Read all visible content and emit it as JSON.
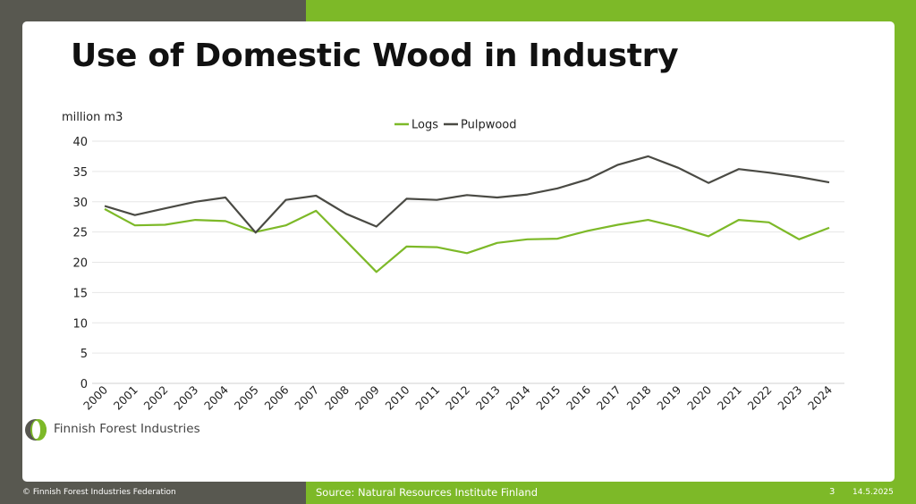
{
  "slide": {
    "title": "Use of Domestic Wood in Industry",
    "logo_text": "Finnish Forest Industries",
    "footer_copyright": "© Finnish Forest Industries Federation",
    "footer_source": "Source: Natural Resources Institute Finland",
    "page_number": "3",
    "date": "14.5.2025"
  },
  "colors": {
    "logs": "#7db928",
    "pulpwood": "#4a4a44",
    "grid": "#e6e6e6",
    "accent_green": "#7db928",
    "dark_panel": "#585850"
  },
  "chart_data": {
    "type": "line",
    "title": "",
    "ylabel": "million m3",
    "xlabel": "",
    "ylim": [
      0,
      40
    ],
    "yticks": [
      0,
      5,
      10,
      15,
      20,
      25,
      30,
      35,
      40
    ],
    "grid": true,
    "legend_position": "top-center",
    "categories": [
      "2000",
      "2001",
      "2002",
      "2003",
      "2004",
      "2005",
      "2006",
      "2007",
      "2008",
      "2009",
      "2010",
      "2011",
      "2012",
      "2013",
      "2014",
      "2015",
      "2016",
      "2017",
      "2018",
      "2019",
      "2020",
      "2021",
      "2022",
      "2023",
      "2024"
    ],
    "series": [
      {
        "name": "Logs",
        "color": "#7db928",
        "values": [
          28.8,
          26.1,
          26.2,
          27.0,
          26.8,
          25.0,
          26.1,
          28.5,
          23.5,
          18.4,
          22.6,
          22.5,
          21.5,
          23.2,
          23.8,
          23.9,
          25.2,
          26.2,
          27.0,
          25.8,
          24.3,
          27.0,
          26.6,
          23.8,
          25.7
        ]
      },
      {
        "name": "Pulpwood",
        "color": "#4a4a44",
        "values": [
          29.3,
          27.8,
          28.9,
          30.0,
          30.7,
          24.9,
          30.3,
          31.0,
          28.0,
          25.9,
          30.5,
          30.3,
          31.1,
          30.7,
          31.2,
          32.2,
          33.7,
          36.1,
          37.5,
          35.6,
          33.1,
          35.4,
          34.8,
          34.1,
          33.2
        ]
      }
    ]
  }
}
